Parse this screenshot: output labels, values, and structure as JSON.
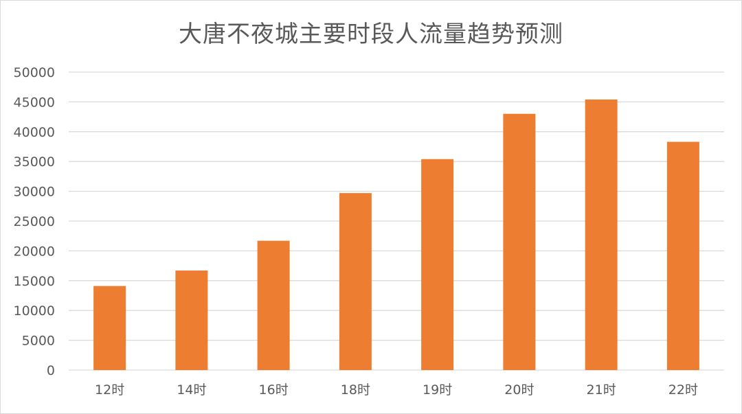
{
  "chart_data": {
    "type": "bar",
    "title": "大唐不夜城主要时段人流量趋势预测",
    "xlabel": "",
    "ylabel": "",
    "categories": [
      "12时",
      "14时",
      "16时",
      "18时",
      "19时",
      "20时",
      "21时",
      "22时"
    ],
    "values": [
      14100,
      16700,
      21700,
      29700,
      35400,
      43000,
      45400,
      38300
    ],
    "ylim": [
      0,
      50000
    ],
    "yticks": [
      0,
      5000,
      10000,
      15000,
      20000,
      25000,
      30000,
      35000,
      40000,
      45000,
      50000
    ],
    "grid": true,
    "legend": "none",
    "bar_color": "#ED7D31",
    "grid_color": "#D9D9D9",
    "text_color": "#595959"
  }
}
